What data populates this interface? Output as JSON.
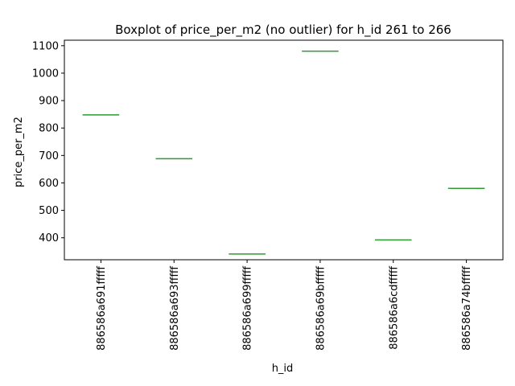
{
  "chart_data": {
    "type": "boxplot",
    "title": "Boxplot of price_per_m2 (no outlier) for h_id 261 to 266",
    "xlabel": "h_id",
    "ylabel": "price_per_m2",
    "categories": [
      "886586a691fffff",
      "886586a693fffff",
      "886586a699fffff",
      "886586a69bfffff",
      "886586a6cdfffff",
      "886586a74bfffff"
    ],
    "values": [
      848,
      688,
      341,
      1080,
      392,
      580
    ],
    "ylim": [
      320,
      1120
    ],
    "yticks": [
      400,
      500,
      600,
      700,
      800,
      900,
      1000,
      1100
    ],
    "grid": false,
    "legend": "none",
    "colors": {
      "box": "#1f77b4",
      "median": "#2ca02c",
      "axis": "#000000"
    }
  }
}
